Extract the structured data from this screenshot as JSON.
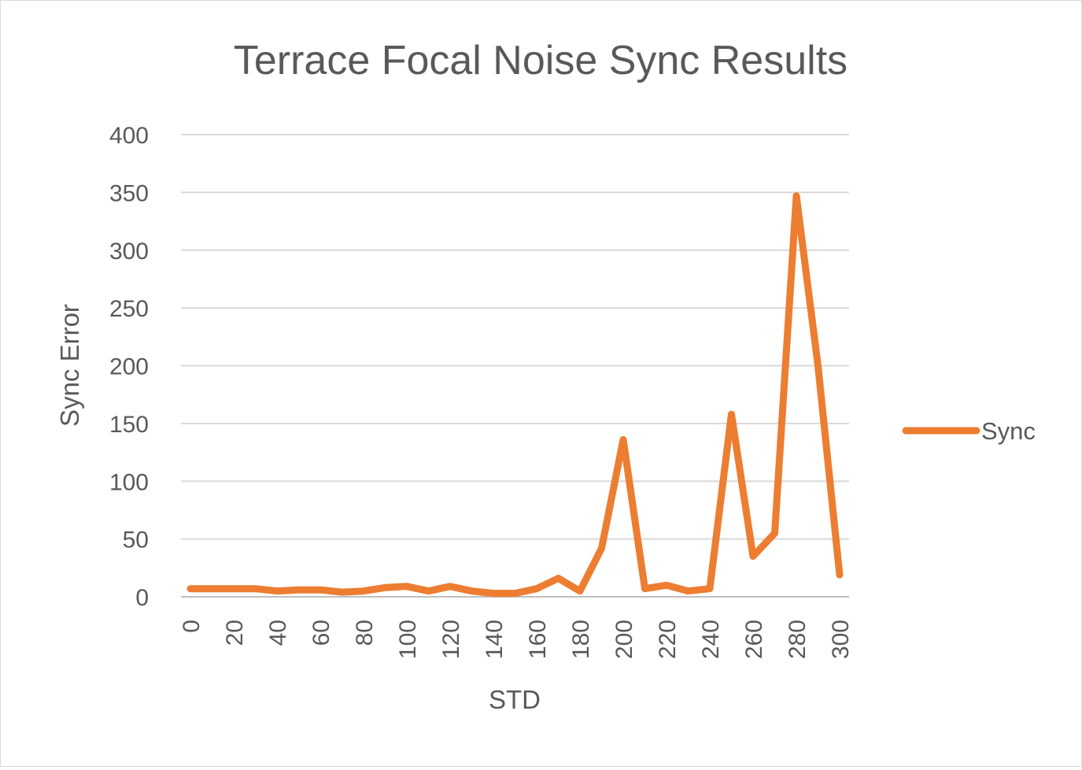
{
  "chart_data": {
    "type": "line",
    "title": "Terrace Focal Noise Sync Results",
    "xlabel": "STD",
    "ylabel": "Sync Error",
    "x": [
      0,
      10,
      20,
      30,
      40,
      50,
      60,
      70,
      80,
      90,
      100,
      110,
      120,
      130,
      140,
      150,
      160,
      170,
      180,
      190,
      200,
      210,
      220,
      230,
      240,
      250,
      260,
      270,
      280,
      290,
      300
    ],
    "x_tick_labels": [
      "0",
      "20",
      "40",
      "60",
      "80",
      "100",
      "120",
      "140",
      "160",
      "180",
      "200",
      "220",
      "240",
      "260",
      "280",
      "300"
    ],
    "y_tick_labels": [
      "0",
      "50",
      "100",
      "150",
      "200",
      "250",
      "300",
      "350",
      "400"
    ],
    "ylim": [
      0,
      400
    ],
    "grid": true,
    "legend_position": "right",
    "series": [
      {
        "name": "Sync",
        "color": "#ed7d31",
        "values": [
          7,
          7,
          7,
          7,
          5,
          6,
          6,
          4,
          5,
          8,
          9,
          5,
          9,
          5,
          3,
          3,
          7,
          16,
          5,
          42,
          136,
          7,
          10,
          5,
          7,
          158,
          35,
          55,
          347,
          200,
          19
        ]
      }
    ]
  }
}
